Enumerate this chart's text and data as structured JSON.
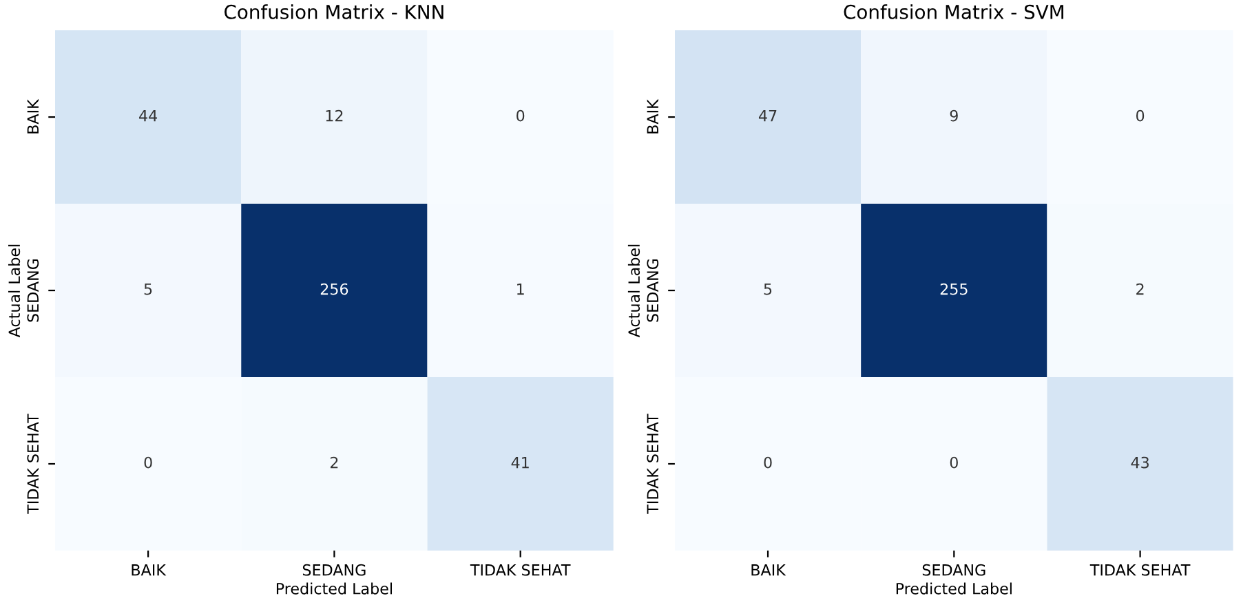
{
  "chart_data": [
    {
      "type": "heatmap",
      "title": "Confusion Matrix - KNN",
      "xlabel": "Predicted Label",
      "ylabel": "Actual Label",
      "categories": [
        "BAIK",
        "SEDANG",
        "TIDAK SEHAT"
      ],
      "y_categories": [
        "BAIK",
        "SEDANG",
        "TIDAK SEHAT"
      ],
      "cells": [
        [
          44,
          12,
          0
        ],
        [
          5,
          256,
          1
        ],
        [
          0,
          2,
          41
        ]
      ],
      "data_labels": true
    },
    {
      "type": "heatmap",
      "title": "Confusion Matrix - SVM",
      "xlabel": "Predicted Label",
      "ylabel": "Actual Label",
      "categories": [
        "BAIK",
        "SEDANG",
        "TIDAK SEHAT"
      ],
      "y_categories": [
        "BAIK",
        "SEDANG",
        "TIDAK SEHAT"
      ],
      "cells": [
        [
          47,
          9,
          0
        ],
        [
          5,
          255,
          2
        ],
        [
          0,
          0,
          43
        ]
      ],
      "data_labels": true
    }
  ]
}
